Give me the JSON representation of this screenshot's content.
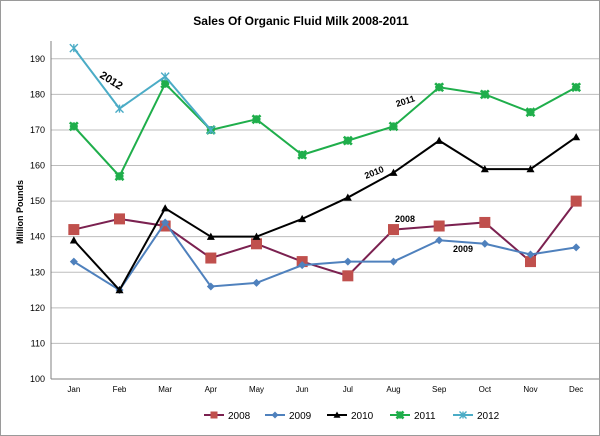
{
  "chart_data": {
    "type": "line",
    "title": "Sales Of Organic Fluid Milk 2008-2011",
    "ylabel": "Million Pounds",
    "xlabel": "",
    "ylim": [
      100,
      195
    ],
    "yticks": [
      100,
      110,
      120,
      130,
      140,
      150,
      160,
      170,
      180,
      190
    ],
    "grid": "horizontal",
    "legend": "bottom",
    "categories": [
      "Jan",
      "Feb",
      "Mar",
      "Apr",
      "May",
      "Jun",
      "Jul",
      "Aug",
      "Sep",
      "Oct",
      "Nov",
      "Dec"
    ],
    "series": [
      {
        "name": "2008",
        "color": "#7b2150",
        "marker": "square",
        "markerColor": "#c0504d",
        "values": [
          142,
          145,
          143,
          134,
          138,
          133,
          129,
          142,
          143,
          144,
          133,
          150
        ]
      },
      {
        "name": "2009",
        "color": "#4f81bd",
        "marker": "diamond",
        "markerColor": "#4f81bd",
        "values": [
          133,
          125,
          144,
          126,
          127,
          132,
          133,
          133,
          139,
          138,
          135,
          137
        ]
      },
      {
        "name": "2010",
        "color": "#000000",
        "marker": "triangle",
        "markerColor": "#000000",
        "values": [
          139,
          125,
          148,
          140,
          140,
          145,
          151,
          158,
          167,
          159,
          159,
          168
        ]
      },
      {
        "name": "2011",
        "color": "#1fae4b",
        "marker": "cross",
        "markerColor": "#1fae4b",
        "values": [
          171,
          157,
          183,
          170,
          173,
          163,
          167,
          171,
          182,
          180,
          175,
          182
        ]
      },
      {
        "name": "2012",
        "color": "#4bacc6",
        "marker": "x",
        "markerColor": "#4bacc6",
        "values": [
          193,
          176,
          185,
          170,
          null,
          null,
          null,
          null,
          null,
          null,
          null,
          null
        ]
      }
    ],
    "annotations": [
      {
        "text": "2012",
        "series": "2012"
      },
      {
        "text": "2011",
        "series": "2011"
      },
      {
        "text": "2010",
        "series": "2010"
      },
      {
        "text": "2008",
        "series": "2008"
      },
      {
        "text": "2009",
        "series": "2009"
      }
    ]
  }
}
